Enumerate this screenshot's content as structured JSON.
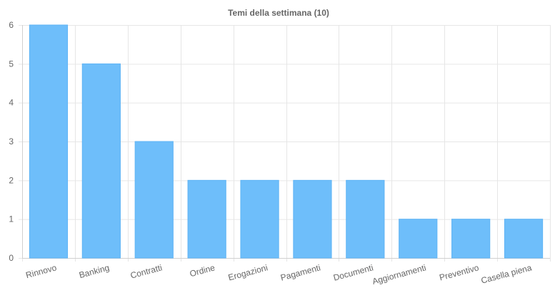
{
  "chart_data": {
    "type": "bar",
    "title": "Temi della settimana (10)",
    "categories": [
      "Rinnovo",
      "Banking",
      "Contratti",
      "Ordine",
      "Erogazioni",
      "Pagamenti",
      "Documenti",
      "Aggiornamenti",
      "Preventivo",
      "Casella piena"
    ],
    "values": [
      6,
      5,
      3,
      2,
      2,
      2,
      2,
      1,
      1,
      1
    ],
    "xlabel": "",
    "ylabel": "",
    "ylim": [
      0,
      6
    ],
    "yticks": [
      "0",
      "1",
      "2",
      "3",
      "4",
      "5",
      "6"
    ],
    "grid": true,
    "legend": "none",
    "colors": {
      "bar": "#6ebefa",
      "bar_border": "#5fb4f5",
      "grid": "#e6e6e6",
      "axis": "#d0d0d0",
      "tick_text": "#666666",
      "title_text": "#666666"
    }
  }
}
